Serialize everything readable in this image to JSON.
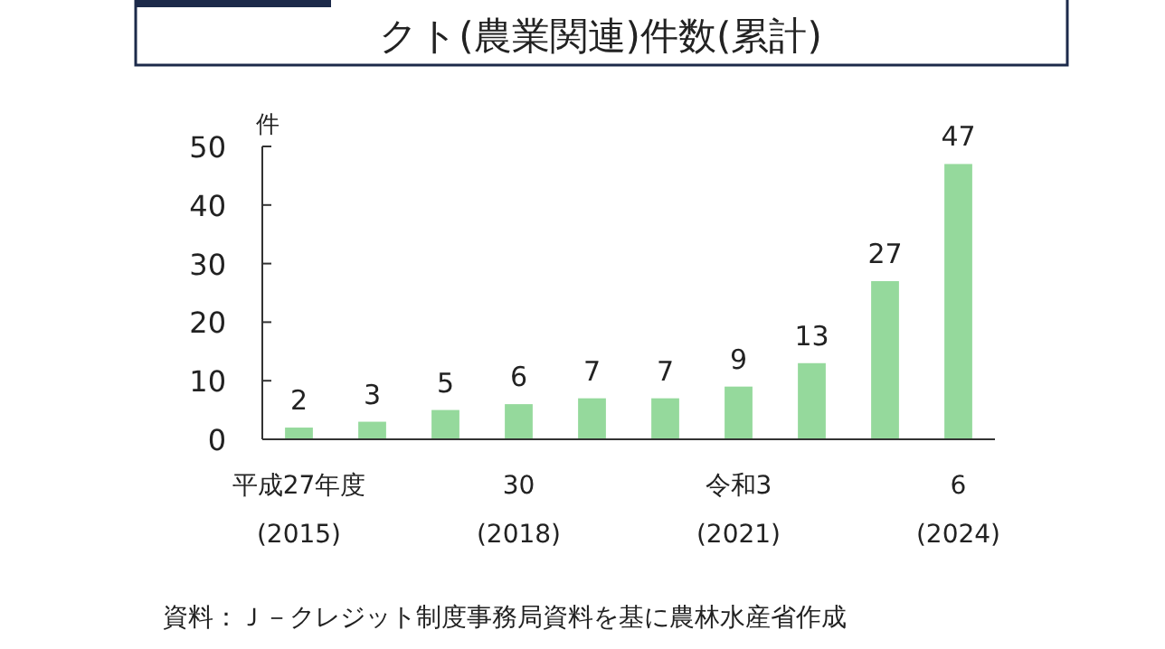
{
  "chart_data": {
    "type": "bar",
    "title": "クト(農業関連)件数(累計)",
    "ylabel": "件",
    "categories": [
      "平成27年度\n(2015)",
      null,
      null,
      "30\n(2018)",
      null,
      null,
      "令和3\n(2021)",
      null,
      null,
      "6\n(2024)"
    ],
    "values": [
      2,
      3,
      5,
      6,
      7,
      7,
      9,
      13,
      27,
      47
    ],
    "color": "#95d99c",
    "ylim": [
      0,
      50
    ],
    "yticks": [
      0,
      10,
      20,
      30,
      40,
      50
    ],
    "data_labels": true,
    "annotations": [
      "資料：Ｊ－クレジット制度事務局資料を基に農林水産省作成"
    ]
  }
}
